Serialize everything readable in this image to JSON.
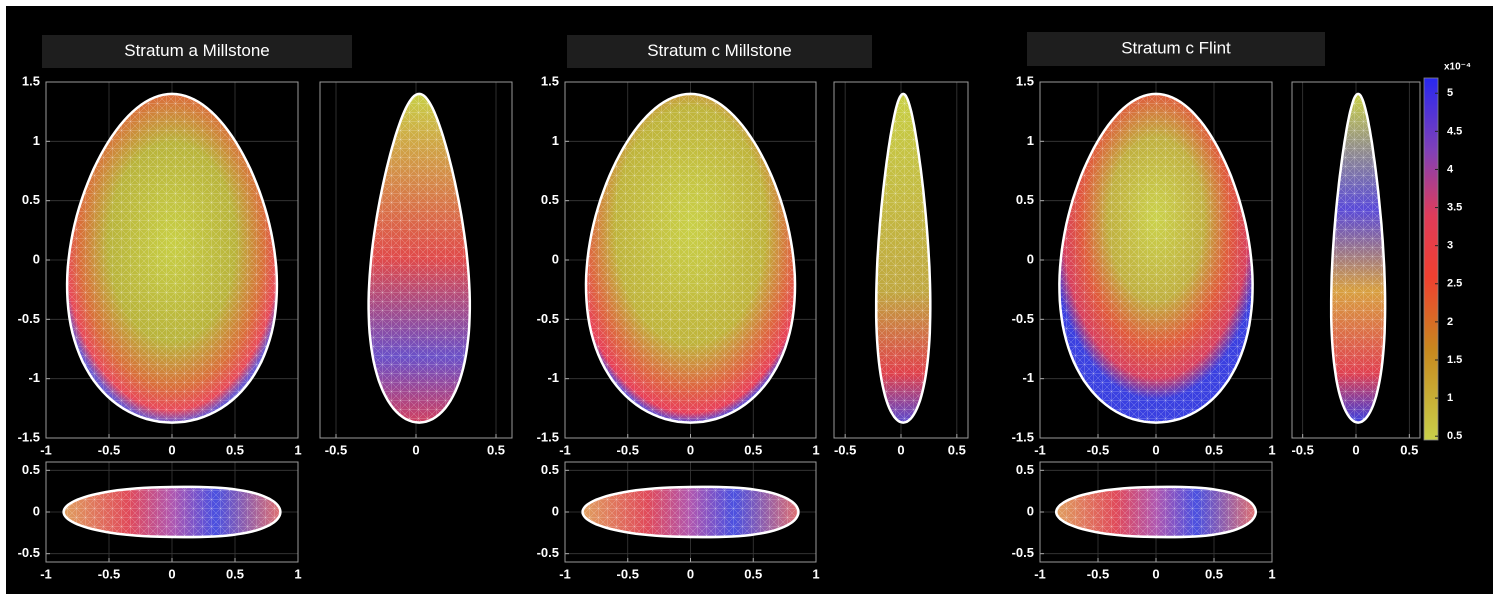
{
  "panels": [
    {
      "title": "Stratum a Millstone",
      "front": {
        "xlim": [
          -1,
          1
        ],
        "ylim": [
          -1.5,
          1.5
        ],
        "xticks": [
          -1,
          -0.5,
          0,
          0.5,
          1
        ],
        "yticks": [
          -1.5,
          -1,
          -0.5,
          0,
          0.5,
          1,
          1.5
        ]
      },
      "side": {
        "xlim": [
          -0.6,
          0.6
        ],
        "xticks": [
          -0.5,
          0,
          0.5
        ]
      },
      "top": {
        "xlim": [
          -1,
          1
        ],
        "ylim": [
          -0.6,
          0.6
        ],
        "xticks": [
          -1,
          -0.5,
          0,
          0.5,
          1
        ],
        "yticks": [
          -0.5,
          0,
          0.5
        ]
      }
    },
    {
      "title": "Stratum c Millstone",
      "front": {
        "xlim": [
          -1,
          1
        ],
        "ylim": [
          -1.5,
          1.5
        ],
        "xticks": [
          -1,
          -0.5,
          0,
          0.5,
          1
        ],
        "yticks": [
          -1.5,
          -1,
          -0.5,
          0,
          0.5,
          1,
          1.5
        ]
      },
      "side": {
        "xlim": [
          -0.6,
          0.6
        ],
        "xticks": [
          -0.5,
          0,
          0.5
        ]
      },
      "top": {
        "xlim": [
          -1,
          1
        ],
        "ylim": [
          -0.6,
          0.6
        ],
        "xticks": [
          -1,
          -0.5,
          0,
          0.5,
          1
        ],
        "yticks": [
          -0.5,
          0,
          0.5
        ]
      }
    },
    {
      "title": "Stratum c Flint",
      "front": {
        "xlim": [
          -1,
          1
        ],
        "ylim": [
          -1.5,
          1.5
        ],
        "xticks": [
          -1,
          -0.5,
          0,
          0.5,
          1
        ],
        "yticks": [
          -1.5,
          -1,
          -0.5,
          0,
          0.5,
          1,
          1.5
        ]
      },
      "side": {
        "xlim": [
          -0.6,
          0.6
        ],
        "xticks": [
          -0.5,
          0,
          0.5
        ]
      },
      "top": {
        "xlim": [
          -1,
          1
        ],
        "ylim": [
          -0.6,
          0.6
        ],
        "xticks": [
          -1,
          -0.5,
          0,
          0.5,
          1
        ],
        "yticks": [
          -0.5,
          0,
          0.5
        ]
      }
    }
  ],
  "colorbar": {
    "exponent": "x10⁻⁴",
    "lim": [
      0.45,
      5.2
    ],
    "ticks": [
      0.5,
      1,
      1.5,
      2,
      2.5,
      3,
      3.5,
      4,
      4.5,
      5
    ]
  }
}
